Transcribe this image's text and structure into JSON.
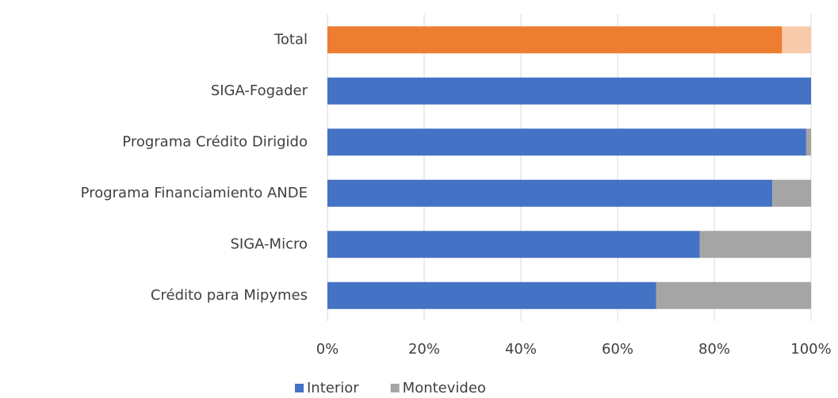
{
  "chart_data": {
    "type": "bar",
    "orientation": "horizontal",
    "stacked": true,
    "categories": [
      "Total",
      "SIGA-Fogader",
      "Programa Crédito Dirigido",
      "Programa Financiamiento ANDE",
      "SIGA-Micro",
      "Crédito para Mipymes"
    ],
    "series": [
      {
        "name": "Interior",
        "color": "#4472c4",
        "colors": [
          "#ed7d31",
          "#4472c4",
          "#4472c4",
          "#4472c4",
          "#4472c4",
          "#4472c4"
        ],
        "values": [
          94,
          100,
          99,
          92,
          77,
          68
        ]
      },
      {
        "name": "Montevideo",
        "color": "#a5a5a5",
        "colors": [
          "#f8cbad",
          "#a5a5a5",
          "#a5a5a5",
          "#a5a5a5",
          "#a5a5a5",
          "#a5a5a5"
        ],
        "values": [
          6,
          0,
          1,
          8,
          23,
          32
        ]
      }
    ],
    "xlim": [
      0,
      100
    ],
    "xticks": [
      {
        "value": 0,
        "label": "0%"
      },
      {
        "value": 20,
        "label": "20%"
      },
      {
        "value": 40,
        "label": "40%"
      },
      {
        "value": 60,
        "label": "60%"
      },
      {
        "value": 80,
        "label": "80%"
      },
      {
        "value": 100,
        "label": "100%"
      }
    ],
    "grid": true,
    "legend": "bottom"
  }
}
